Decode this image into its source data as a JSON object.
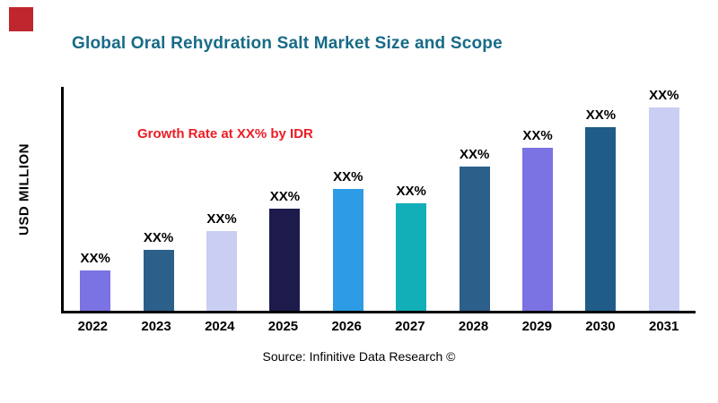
{
  "header": {
    "title": "Global Oral Rehydration Salt Market Size and Scope",
    "title_color": "#176B87"
  },
  "brand": {
    "corner_square_color": "#C0262E"
  },
  "annotation": {
    "text": "Growth Rate at XX% by IDR",
    "color": "#ED1C24"
  },
  "axes": {
    "y_axis_label": "USD MILLION"
  },
  "source": {
    "text": "Source: Infinitive Data Research ©"
  },
  "chart_data": {
    "type": "bar",
    "title": "Global Oral Rehydration Salt Market Size and Scope",
    "xlabel": "",
    "ylabel": "USD MILLION",
    "categories": [
      "2022",
      "2023",
      "2024",
      "2025",
      "2026",
      "2027",
      "2028",
      "2029",
      "2030",
      "2031"
    ],
    "values": [
      20,
      30,
      39,
      50,
      60,
      53,
      71,
      80,
      90,
      100
    ],
    "value_labels": [
      "XX%",
      "XX%",
      "XX%",
      "XX%",
      "XX%",
      "XX%",
      "XX%",
      "XX%",
      "XX%",
      "XX%"
    ],
    "bar_colors": [
      "#7B72E3",
      "#2C5F8A",
      "#C9CEF2",
      "#1C1B4B",
      "#2E9BE6",
      "#12AFB8",
      "#2C5F8A",
      "#7B72E3",
      "#1F5C87",
      "#C9CEF2"
    ],
    "ylim": [
      0,
      110
    ],
    "grid": false,
    "legend": false,
    "annotation": "Growth Rate at XX% by IDR",
    "source": "Source: Infinitive Data Research ©"
  }
}
